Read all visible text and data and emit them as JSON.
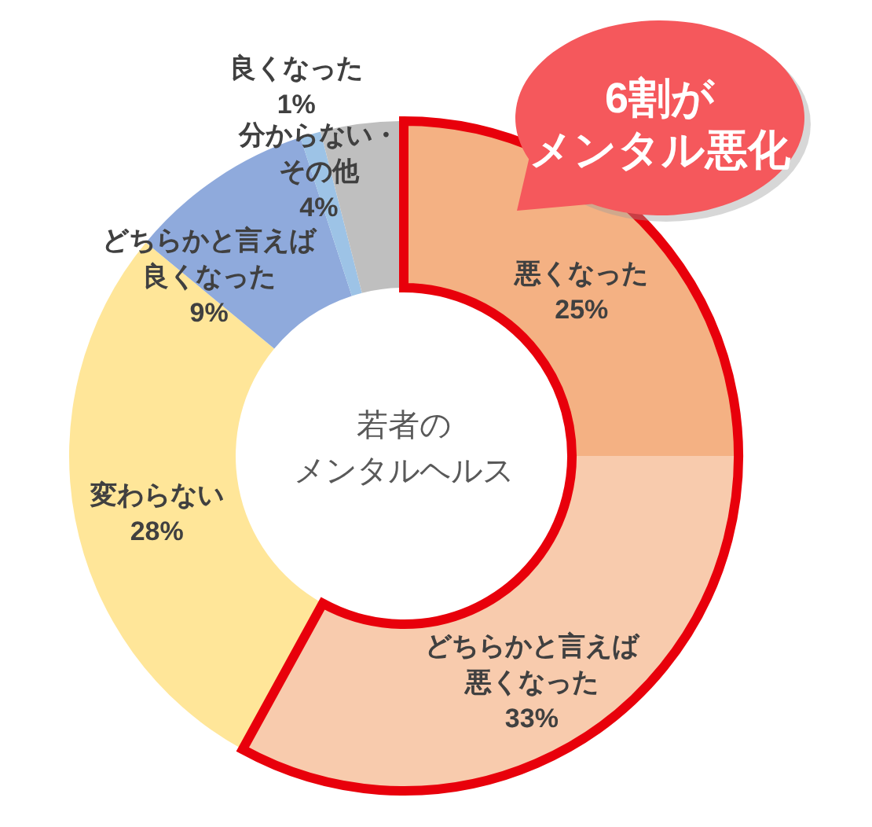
{
  "chart_data": {
    "type": "donut",
    "title": "若者のメンタルヘルス",
    "categories": [
      "悪くなった",
      "どちらかと言えば悪くなった",
      "変わらない",
      "どちらかと言えば良くなった",
      "良くなった",
      "分からない・その他"
    ],
    "values": [
      25,
      33,
      28,
      9,
      1,
      4
    ],
    "colors": [
      "#f4b183",
      "#f8cbad",
      "#ffe699",
      "#8faadc",
      "#9dc3e6",
      "#bfbfbf"
    ],
    "value_labels": [
      "25%",
      "33%",
      "28%",
      "9%",
      "1%",
      "4%"
    ],
    "annotations": [
      "6割がメンタル悪化"
    ]
  }
}
